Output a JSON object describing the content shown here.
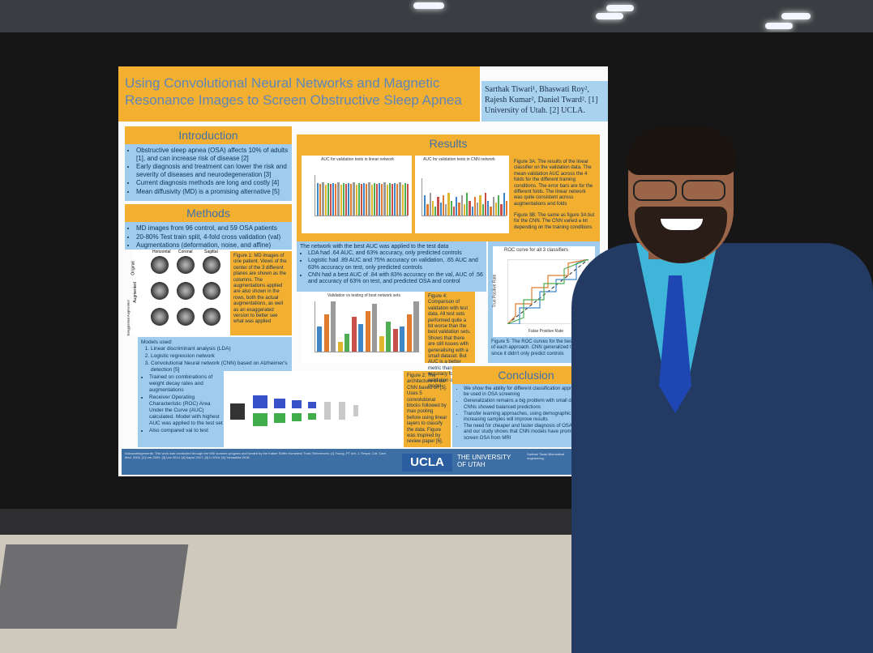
{
  "poster": {
    "title": "Using Convolutional Neural Networks and Magnetic Resonance Images to Screen Obstructive Sleep Apnea",
    "authors": "Sarthak Tiwari¹, Bhaswati Roy², Rajesh Kumar², Daniel Tward². [1] University of Utah. [2] UCLA.",
    "introduction": {
      "heading": "Introduction",
      "bullets": [
        "Obstructive sleep apnea (OSA) affects 10% of adults [1], and can increase risk of disease [2]",
        "Early diagnosis and treatment can lower the risk and severity of diseases and neurodegeneration [3]",
        "Current diagnosis methods are long and costly [4]",
        "Mean diffusivity (MD) is a promising alternative [5]"
      ]
    },
    "methods": {
      "heading": "Methods",
      "bullets": [
        "MD images from 96 control, and 59 OSA patients",
        "20-80% Test train split, 4-fold cross validation (val)",
        "Augmentations (deformation, noise, and affine)"
      ],
      "views": [
        "Horizontal",
        "Coronal",
        "Sagittal"
      ],
      "rows": [
        "Original",
        "Augmented",
        "Exaggerated Augmented"
      ],
      "figure1": "Figure 1: MD images of one patient. Views of the center of the 3 different planes are shown as the columns. The augmentations applied are also shown in the rows, both the actual augmentations, as well as an exaggerated version to better see what was applied",
      "models_intro": "Models used:",
      "models": [
        "Linear discriminant analysis (LDA)",
        "Logistic regression network",
        "Convolutional Neural network (CNN) based on Alzheimer's detection [5]"
      ],
      "more": [
        "Trained on combinations of weight decay rates and augmentations",
        "Receiver Operating Characteristic (ROC) Area Under the Curve (AUC) calculated. Model with highest AUC was applied to the test set",
        "Also compared val to test"
      ],
      "figure2": "Figure 2: The architecture of our CNN based on [5]. Uses 5 convolutional blocks followed by max pooling before using linear layers to classify the data. Figure was inspired by review paper [6]."
    },
    "results": {
      "heading": "Results",
      "plotA": "AUC for validation tests in linear network",
      "plotB": "AUC for validation tests in CNN network",
      "figure3a": "Figure 3A: The results of the linear classifier on the validation data. The mean validation AUC across the 4 folds for the different training conditions. The error bars are for the different folds. The linear network was quite consistent across augmentations and folds",
      "figure3b": "Figure 3B: The same as figure 3A but for the CNN. The CNN varied a lot depending on the training conditions",
      "test_intro": "The network with the best AUC was applied to the test data",
      "test_bullets": [
        "LDA had .64 AUC, and 63% accuracy, only predicted controls",
        "Logistic had .89 AUC and 75% accuracy on validation, .65 AUC and 63% accuracy on test, only predicted controls",
        "CNN had a best AUC of .84 with 83% accuracy on the val, AUC of .56 and accuracy of 63% on test, and predicted OSA and control"
      ],
      "roc_title": "ROC curve for all 3 classifiers",
      "roc_xlabel": "False Positive Rate",
      "roc_ylabel": "True Positive Rate",
      "bars_title": "Validation vs testing of best network sets",
      "figure4": "Figure 4: Comparison of validation with test data. All test sets performed quite a bit worse than the best validation sets. Shows that there are still issues with generalising with a small dataset. But AUC is a better metric than accuracy for validation of our model.",
      "figure5": "Figure 5: The ROC curves for the best classifier of each approach. CNN generalized the best since it didn't only predict controls"
    },
    "conclusion": {
      "heading": "Conclusion",
      "bullets": [
        "We show the ability for different classification approaches to be used in OSA screening",
        "Generalization remains a big problem with small datasets, but CNNs showed balanced predictions",
        "Transfer learning approaches, using demographic data, and increasing samples will improve results",
        "The need for cheaper and faster diagnosis of OSA remains, and our study shows that CNN models have promise to screen OSA from MRI"
      ]
    },
    "footer": {
      "ack": "Acknowledgements: This work was conducted through the MSI summer program and funded by the Kaiser Suffer Homeless Trust. References: [1] Young, PT Am. J. Respir. Crit. Care Med. 2002. [2] Lee 2009. [3] Lee 2014. [4] Kapur 2017. [5] Li 2015. [6] Yamashita 2018.",
      "ucla": "UCLA",
      "uofu": "THE UNIVERSITY OF UTAH",
      "presenter": "Sarthak Tiwari Biomedical engineering"
    }
  },
  "colors": {
    "poster_orange": "#f3b030",
    "poster_blue": "#9fcbec",
    "suit": "#233b63",
    "shirt": "#3fb6d9",
    "tie": "#1f47b3"
  }
}
